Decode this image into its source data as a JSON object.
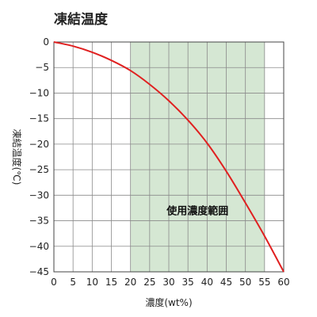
{
  "chart_data": {
    "type": "line",
    "title": "凍結温度",
    "xlabel": "濃度(wt%)",
    "ylabel": "凍結温度(℃)",
    "xlim": [
      0,
      60
    ],
    "ylim": [
      -45,
      0
    ],
    "x_ticks": [
      0,
      5,
      10,
      15,
      20,
      25,
      30,
      35,
      40,
      45,
      50,
      55,
      60
    ],
    "y_ticks": [
      0,
      -5,
      -10,
      -15,
      -20,
      -25,
      -30,
      -35,
      -40,
      -45
    ],
    "y_tick_labels": [
      "0",
      "−5",
      "−10",
      "−15",
      "−20",
      "−25",
      "−30",
      "−35",
      "−40",
      "−45"
    ],
    "grid": true,
    "series": [
      {
        "color": "#e02020",
        "x": [
          0,
          5,
          10,
          15,
          20,
          25,
          30,
          35,
          40,
          45,
          50,
          55,
          60
        ],
        "y": [
          0,
          -0.8,
          -2.0,
          -3.6,
          -5.6,
          -8.3,
          -11.5,
          -15.3,
          -19.8,
          -25.3,
          -31.5,
          -38.0,
          -45.0
        ]
      }
    ],
    "band": {
      "label": "使用濃度範囲",
      "x_range": [
        20,
        55
      ],
      "color": "#d5e7d3"
    }
  }
}
